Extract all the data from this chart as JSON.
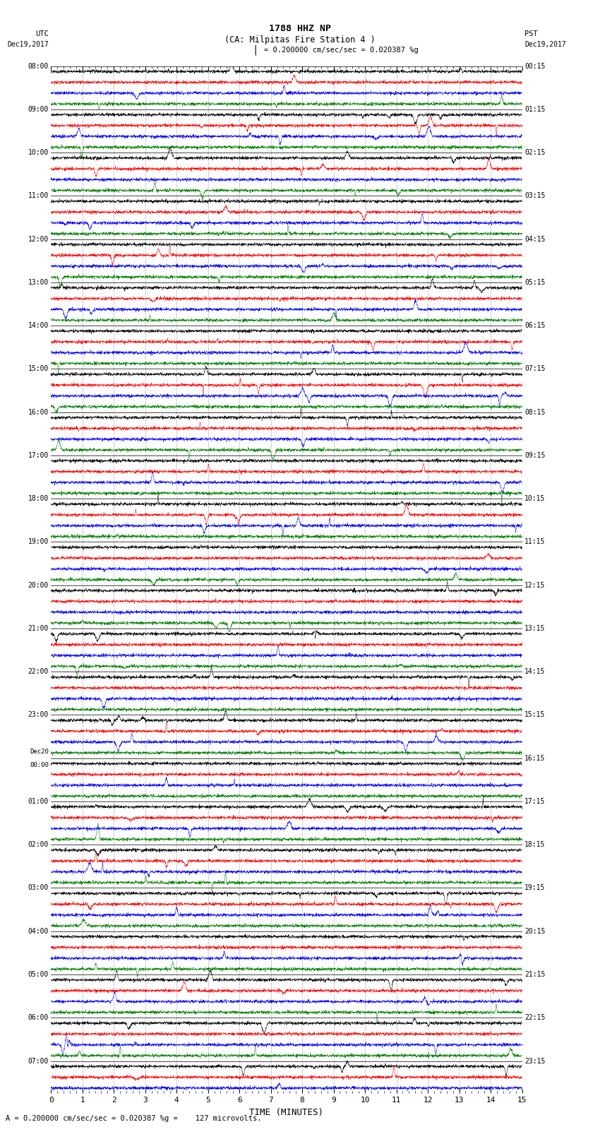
{
  "title_line1": "1788 HHZ NP",
  "title_line2": "(CA: Milpitas Fire Station 4 )",
  "scale_text": "= 0.200000 cm/sec/sec = 0.020387 %g",
  "bottom_text": "A = 0.200000 cm/sec/sec = 0.020387 %g =    127 microvolts.",
  "left_label_top": "UTC",
  "left_label_date": "Dec19,2017",
  "right_label_top": "PST",
  "right_label_date": "Dec19,2017",
  "xlabel": "TIME (MINUTES)",
  "xticks": [
    0,
    1,
    2,
    3,
    4,
    5,
    6,
    7,
    8,
    9,
    10,
    11,
    12,
    13,
    14,
    15
  ],
  "xmin": 0,
  "xmax": 15,
  "background_color": "#ffffff",
  "trace_colors": [
    "black",
    "red",
    "blue",
    "green"
  ],
  "left_times": [
    "08:00",
    "",
    "",
    "",
    "09:00",
    "",
    "",
    "",
    "10:00",
    "",
    "",
    "",
    "11:00",
    "",
    "",
    "",
    "12:00",
    "",
    "",
    "",
    "13:00",
    "",
    "",
    "",
    "14:00",
    "",
    "",
    "",
    "15:00",
    "",
    "",
    "",
    "16:00",
    "",
    "",
    "",
    "17:00",
    "",
    "",
    "",
    "18:00",
    "",
    "",
    "",
    "19:00",
    "",
    "",
    "",
    "20:00",
    "",
    "",
    "",
    "21:00",
    "",
    "",
    "",
    "22:00",
    "",
    "",
    "",
    "23:00",
    "",
    "",
    "",
    "Dec20\n00:00",
    "",
    "",
    "",
    "01:00",
    "",
    "",
    "",
    "02:00",
    "",
    "",
    "",
    "03:00",
    "",
    "",
    "",
    "04:00",
    "",
    "",
    "",
    "05:00",
    "",
    "",
    "",
    "06:00",
    "",
    "",
    "",
    "07:00",
    "",
    ""
  ],
  "right_times": [
    "00:15",
    "",
    "",
    "",
    "01:15",
    "",
    "",
    "",
    "02:15",
    "",
    "",
    "",
    "03:15",
    "",
    "",
    "",
    "04:15",
    "",
    "",
    "",
    "05:15",
    "",
    "",
    "",
    "06:15",
    "",
    "",
    "",
    "07:15",
    "",
    "",
    "",
    "08:15",
    "",
    "",
    "",
    "09:15",
    "",
    "",
    "",
    "10:15",
    "",
    "",
    "",
    "11:15",
    "",
    "",
    "",
    "12:15",
    "",
    "",
    "",
    "13:15",
    "",
    "",
    "",
    "14:15",
    "",
    "",
    "",
    "15:15",
    "",
    "",
    "",
    "16:15",
    "",
    "",
    "",
    "17:15",
    "",
    "",
    "",
    "18:15",
    "",
    "",
    "",
    "19:15",
    "",
    "",
    "",
    "20:15",
    "",
    "",
    "",
    "21:15",
    "",
    "",
    "",
    "22:15",
    "",
    "",
    "",
    "23:15",
    "",
    ""
  ],
  "num_traces": 95,
  "samples_per_trace": 2700,
  "fig_width": 8.5,
  "fig_height": 16.13,
  "dpi": 100
}
